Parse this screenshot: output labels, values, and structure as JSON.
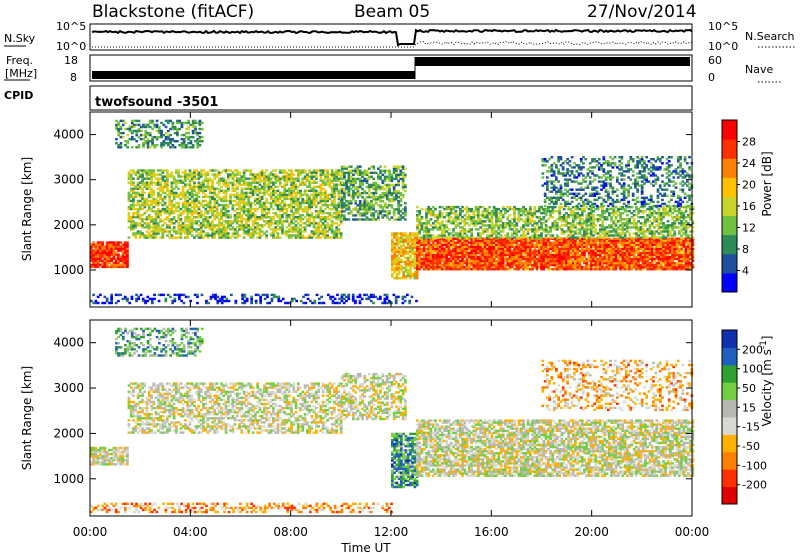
{
  "header": {
    "station": "Blackstone (fitACF)",
    "beam": "Beam 05",
    "date": "27/Nov/2014"
  },
  "noise_panel": {
    "left_label": "N.Sky",
    "right_label": "N.Search",
    "ticks_left": [
      "10^5",
      "10^0"
    ],
    "ticks_right": [
      "10^5",
      "10^0"
    ]
  },
  "freq_panel": {
    "left_label_line1": "Freq.",
    "left_label_line2": "[MHz]",
    "right_label": "Nave",
    "ticks_left": [
      "18",
      "8"
    ],
    "ticks_right": [
      "60",
      "0"
    ]
  },
  "cpid_panel": {
    "label": "CPID",
    "program": "twofsound -3501"
  },
  "colors": {
    "power_scale": [
      "#0000ff",
      "#1f4f9f",
      "#2e8b57",
      "#6fbf40",
      "#c8d42a",
      "#ffc000",
      "#ff8000",
      "#ff3000",
      "#ff0000"
    ],
    "velocity_scale": [
      "#1030b0",
      "#2060c0",
      "#30a030",
      "#70d040",
      "#b8b8b0",
      "#d8d8d0",
      "#ffb000",
      "#ff8000",
      "#ff3000",
      "#e00000"
    ]
  },
  "chart_data": [
    {
      "type": "heatmap",
      "name": "power",
      "ylabel": "Slant Range [km]",
      "ylim": [
        180,
        4500
      ],
      "yticks": [
        1000,
        2000,
        3000,
        4000
      ],
      "xlim": [
        0,
        24
      ],
      "xticks": [
        0,
        4,
        8,
        12,
        16,
        20,
        24
      ],
      "colorbar": {
        "label": "Power [dB]",
        "range": [
          0,
          32
        ],
        "ticks": [
          "4",
          "8",
          "12",
          "16",
          "20",
          "24",
          "28"
        ]
      },
      "bands": [
        {
          "t0": 0.0,
          "t1": 13.0,
          "r0": 250,
          "r1": 450,
          "level": 0.1,
          "density": 0.35
        },
        {
          "t0": 0.0,
          "t1": 1.5,
          "r0": 1050,
          "r1": 1600,
          "level": 0.85,
          "density": 0.9
        },
        {
          "t0": 1.5,
          "t1": 10.0,
          "r0": 1700,
          "r1": 3200,
          "level": 0.45,
          "density": 0.65
        },
        {
          "t0": 10.0,
          "t1": 12.6,
          "r0": 2100,
          "r1": 3300,
          "level": 0.35,
          "density": 0.6
        },
        {
          "t0": 12.0,
          "t1": 13.0,
          "r0": 800,
          "r1": 1800,
          "level": 0.6,
          "density": 0.8
        },
        {
          "t0": 13.0,
          "t1": 24.0,
          "r0": 1000,
          "r1": 1700,
          "level": 0.8,
          "density": 0.95
        },
        {
          "t0": 13.0,
          "t1": 24.0,
          "r0": 1700,
          "r1": 2400,
          "level": 0.4,
          "density": 0.6
        },
        {
          "t0": 18.0,
          "t1": 24.0,
          "r0": 2400,
          "r1": 3500,
          "level": 0.25,
          "density": 0.35
        },
        {
          "t0": 1.0,
          "t1": 4.5,
          "r0": 3700,
          "r1": 4300,
          "level": 0.3,
          "density": 0.5
        }
      ]
    },
    {
      "type": "heatmap",
      "name": "velocity",
      "ylabel": "Slant Range [km]",
      "xlabel": "Time UT",
      "ylim": [
        180,
        4500
      ],
      "yticks": [
        1000,
        2000,
        3000,
        4000
      ],
      "xlim": [
        0,
        24
      ],
      "xticks": [
        0,
        4,
        8,
        12,
        16,
        20,
        24
      ],
      "xtick_labels": [
        "00:00",
        "04:00",
        "08:00",
        "12:00",
        "16:00",
        "20:00",
        "00:00"
      ],
      "colorbar": {
        "label": "Velocity [m s^-1]",
        "range": [
          -250,
          250
        ],
        "ticks": [
          "200",
          "100",
          "50",
          "15",
          "-15",
          "-50",
          "-100",
          "-200"
        ]
      },
      "bands": [
        {
          "t0": 0.0,
          "t1": 12.0,
          "r0": 250,
          "r1": 450,
          "level": 0.7,
          "density": 0.4
        },
        {
          "t0": 0.0,
          "t1": 1.5,
          "r0": 1300,
          "r1": 1700,
          "level": 0.5,
          "density": 0.85
        },
        {
          "t0": 1.5,
          "t1": 10.0,
          "r0": 2000,
          "r1": 3100,
          "level": 0.5,
          "density": 0.55
        },
        {
          "t0": 10.0,
          "t1": 12.6,
          "r0": 2300,
          "r1": 3300,
          "level": 0.5,
          "density": 0.55
        },
        {
          "t0": 12.0,
          "t1": 13.0,
          "r0": 800,
          "r1": 2000,
          "level": 0.25,
          "density": 0.7
        },
        {
          "t0": 13.0,
          "t1": 24.0,
          "r0": 1050,
          "r1": 2300,
          "level": 0.5,
          "density": 0.75
        },
        {
          "t0": 18.0,
          "t1": 24.0,
          "r0": 2500,
          "r1": 3600,
          "level": 0.65,
          "density": 0.3
        },
        {
          "t0": 1.0,
          "t1": 4.5,
          "r0": 3700,
          "r1": 4300,
          "level": 0.3,
          "density": 0.45
        }
      ]
    }
  ]
}
